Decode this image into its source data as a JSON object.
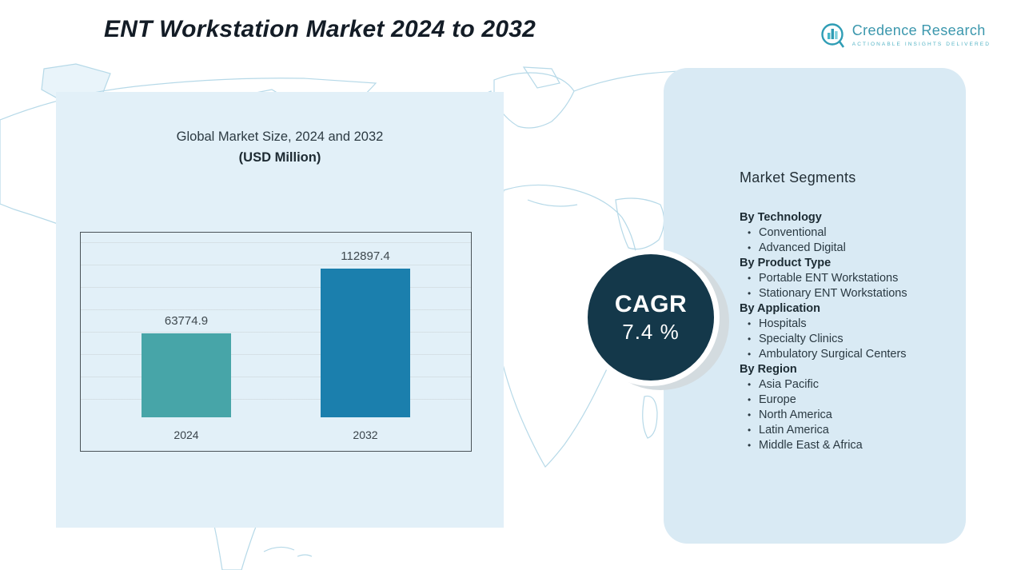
{
  "header": {
    "title": "ENT Workstation Market 2024 to 2032",
    "brand": {
      "name": "Credence Research",
      "tagline": "Actionable Insights Delivered",
      "icon": "bar-chart-magnifier-icon",
      "brand_color": "#3b97ad"
    }
  },
  "chart_data": {
    "type": "bar",
    "title": "Global Market Size, 2024 and 2032",
    "subtitle": "(USD Million)",
    "categories": [
      "2024",
      "2032"
    ],
    "values": [
      63774.9,
      112897.4
    ],
    "value_labels": [
      "63774.9",
      "112897.4"
    ],
    "ylabel": "",
    "xlabel": "",
    "ylim": [
      0,
      140000
    ],
    "grid": true,
    "legend": "none",
    "colors": [
      "#47a5a8",
      "#1b7fad"
    ]
  },
  "cagr": {
    "label": "CAGR",
    "value": "7.4 %",
    "circle_color": "#14384a"
  },
  "segments": {
    "title": "Market Segments",
    "groups": [
      {
        "label": "By Technology",
        "items": [
          "Conventional",
          "Advanced Digital"
        ]
      },
      {
        "label": "By Product Type",
        "items": [
          "Portable ENT Workstations",
          "Stationary ENT Workstations"
        ]
      },
      {
        "label": "By Application",
        "items": [
          "Hospitals",
          "Specialty Clinics",
          "Ambulatory Surgical Centers"
        ]
      },
      {
        "label": "By Region",
        "items": [
          "Asia Pacific",
          "Europe",
          "North America",
          "Latin America",
          "Middle East & Africa"
        ]
      }
    ]
  },
  "palette": {
    "chart_panel_blue": "#e2f0f8",
    "segments_panel_blue": "#d9eaf4",
    "map_line_blue": "#b6d9e8",
    "title_color": "#131c26"
  }
}
